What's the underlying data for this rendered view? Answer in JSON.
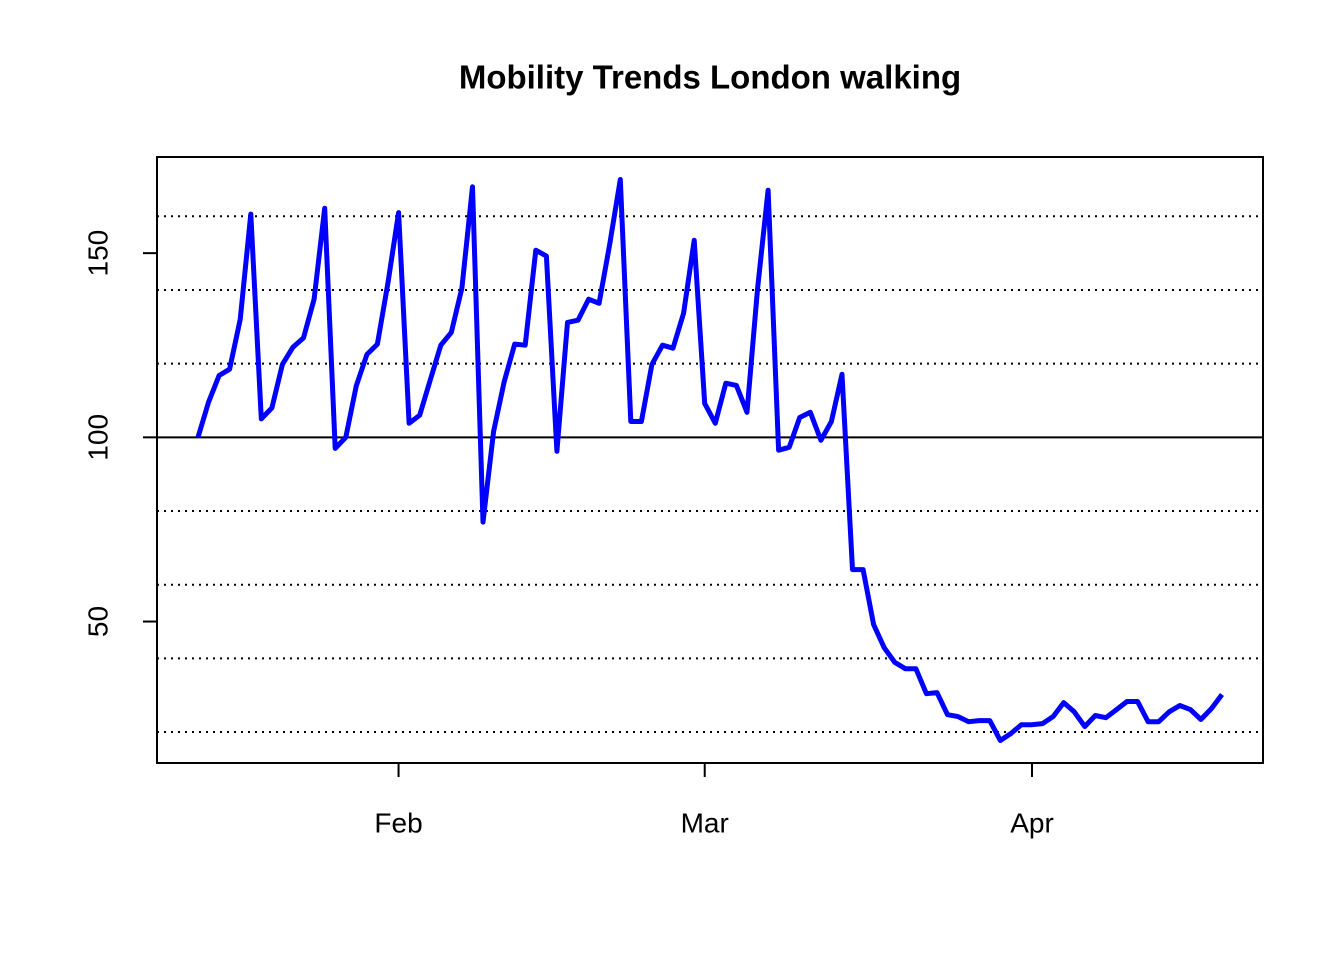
{
  "chart_data": {
    "type": "line",
    "title": "Mobility Trends London walking",
    "categories": [
      null,
      null,
      null,
      null,
      null,
      null,
      null,
      null,
      null,
      null,
      null,
      null,
      null,
      null,
      null,
      null,
      null,
      null,
      null,
      "Feb",
      null,
      null,
      null,
      null,
      null,
      null,
      null,
      null,
      null,
      null,
      null,
      null,
      null,
      null,
      null,
      null,
      null,
      null,
      null,
      null,
      null,
      null,
      null,
      null,
      null,
      null,
      null,
      null,
      "Mar",
      null,
      null,
      null,
      null,
      null,
      null,
      null,
      null,
      null,
      null,
      null,
      null,
      null,
      null,
      null,
      null,
      null,
      null,
      null,
      null,
      null,
      null,
      null,
      null,
      null,
      null,
      null,
      null,
      null,
      null,
      "Apr",
      null,
      null,
      null,
      null,
      null,
      null,
      null,
      null,
      null,
      null,
      null,
      null,
      null,
      null,
      null,
      null,
      null,
      null
    ],
    "values": [
      100,
      109.5,
      116.8,
      118.5,
      132,
      160.6,
      105,
      108,
      119.8,
      124.5,
      127,
      137.5,
      162.2,
      97,
      100,
      114,
      122.5,
      125.3,
      142,
      161,
      103.8,
      106,
      115.5,
      125,
      128.5,
      140.5,
      168,
      77,
      101.6,
      115,
      125.3,
      125,
      150.8,
      149.2,
      96.2,
      131.2,
      131.8,
      137.5,
      136.4,
      152.4,
      170,
      104.3,
      104.3,
      119.8,
      125,
      124.2,
      133.7,
      153.5,
      109.2,
      103.8,
      114.7,
      114.1,
      106.8,
      140.2,
      167.1,
      96.5,
      97.3,
      105.4,
      106.8,
      99.2,
      104.3,
      117.1,
      64.1,
      64.1,
      49.2,
      42.9,
      38.9,
      37.2,
      37.2,
      30.4,
      30.7,
      24.7,
      24.2,
      22.8,
      23.1,
      23.1,
      17.7,
      19.6,
      22,
      22,
      22.3,
      24.2,
      28,
      25.5,
      21.5,
      24.5,
      23.9,
      26.1,
      28.3,
      28.3,
      22.8,
      22.8,
      25.5,
      27.2,
      26.1,
      23.4,
      26.4,
      30.2
    ],
    "color": "#0000ff",
    "ylim": [
      11.6,
      176.1
    ],
    "yticks": [
      50,
      100,
      150
    ],
    "hlines": [
      20,
      40,
      60,
      80,
      120,
      140,
      160
    ],
    "baseline": 100
  }
}
